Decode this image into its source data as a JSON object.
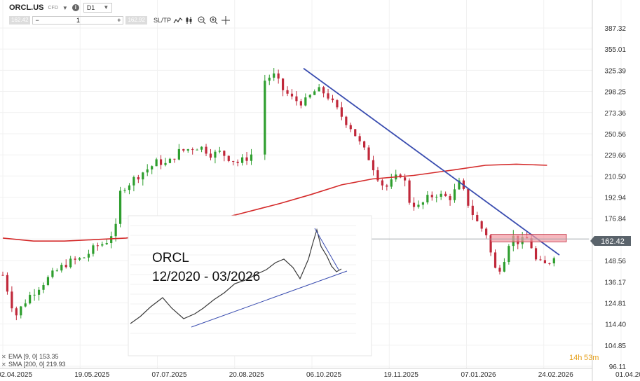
{
  "toolbar": {
    "symbol": "ORCL.US",
    "instrument_type": "CFD",
    "timeframe": "D1",
    "sell_price": "162.42",
    "quantity": "1",
    "buy_price": "162.92",
    "sltp_label": "SL/TP"
  },
  "inset": {
    "title": "ORCL",
    "period": "12/2020 - 03/2026"
  },
  "indicators": {
    "ema": "EMA [9, 0] 153.35",
    "sma": "SMA [200, 0] 219.93"
  },
  "timer": {
    "hours": "14h",
    "minutes": "53m"
  },
  "colors": {
    "bull": "#2e9e2e",
    "bear": "#c0283a",
    "sma": "#d42a2a",
    "trend": "#3a4db0",
    "zone": "#f29aa3",
    "timer": "#e59f1a"
  },
  "chart_data": {
    "type": "candlestick",
    "y_ticks": [
      "387.32",
      "355.01",
      "325.39",
      "298.25",
      "273.36",
      "250.56",
      "229.66",
      "210.50",
      "192.94",
      "176.84",
      "162.42",
      "148.56",
      "136.17",
      "124.81",
      "114.40",
      "104.85",
      "96.11"
    ],
    "y_scale": "log",
    "x_ticks": [
      "02.04.2025",
      "19.05.2025",
      "07.07.2025",
      "20.08.2025",
      "06.10.2025",
      "19.11.2025",
      "07.01.2026",
      "24.02.2026",
      "01.04.2026"
    ],
    "last_price": "162.42",
    "price_path": [
      [
        0,
        140
      ],
      [
        12,
        118
      ],
      [
        25,
        128
      ],
      [
        38,
        135
      ],
      [
        50,
        141
      ],
      [
        62,
        147
      ],
      [
        78,
        150
      ],
      [
        92,
        158
      ],
      [
        100,
        160
      ],
      [
        110,
        170
      ],
      [
        115,
        200
      ],
      [
        124,
        205
      ],
      [
        133,
        212
      ],
      [
        143,
        218
      ],
      [
        152,
        224
      ],
      [
        160,
        220
      ],
      [
        170,
        232
      ],
      [
        180,
        235
      ],
      [
        188,
        238
      ],
      [
        195,
        236
      ],
      [
        204,
        230
      ],
      [
        212,
        232
      ],
      [
        222,
        226
      ],
      [
        230,
        222
      ],
      [
        242,
        230
      ],
      [
        255,
        312
      ],
      [
        263,
        320
      ],
      [
        273,
        300
      ],
      [
        283,
        288
      ],
      [
        294,
        285
      ],
      [
        305,
        300
      ],
      [
        315,
        296
      ],
      [
        323,
        280
      ],
      [
        331,
        268
      ],
      [
        340,
        256
      ],
      [
        349,
        238
      ],
      [
        357,
        226
      ],
      [
        364,
        212
      ],
      [
        372,
        200
      ],
      [
        380,
        206
      ],
      [
        389,
        214
      ],
      [
        396,
        190
      ],
      [
        405,
        185
      ],
      [
        414,
        192
      ],
      [
        422,
        196
      ],
      [
        429,
        193
      ],
      [
        437,
        193
      ],
      [
        445,
        205
      ],
      [
        452,
        190
      ],
      [
        460,
        176
      ],
      [
        466,
        170
      ],
      [
        472,
        165
      ],
      [
        478,
        143
      ],
      [
        486,
        145
      ],
      [
        495,
        165
      ],
      [
        503,
        160
      ],
      [
        512,
        163
      ],
      [
        520,
        147
      ],
      [
        528,
        146
      ],
      [
        536,
        150
      ],
      [
        540,
        162
      ]
    ],
    "sma_200": [
      [
        0,
        163
      ],
      [
        15,
        162
      ],
      [
        30,
        161
      ],
      [
        60,
        161
      ],
      [
        90,
        162
      ],
      [
        120,
        163
      ],
      [
        150,
        166
      ],
      [
        185,
        172
      ],
      [
        230,
        180
      ],
      [
        270,
        188
      ],
      [
        300,
        195
      ],
      [
        330,
        203
      ],
      [
        360,
        208
      ],
      [
        400,
        211
      ],
      [
        440,
        216
      ],
      [
        470,
        220
      ],
      [
        500,
        221
      ],
      [
        530,
        220
      ]
    ],
    "trendline": [
      [
        300,
        328
      ],
      [
        548,
        152
      ]
    ],
    "resistance_zone": [
      160.5,
      165.5
    ],
    "ema_9": 153.35
  }
}
